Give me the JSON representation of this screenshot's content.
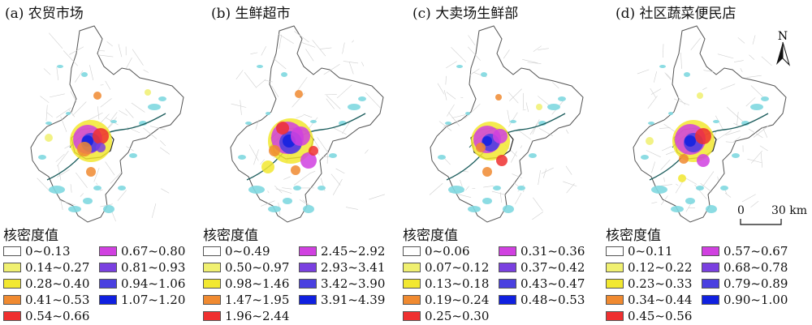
{
  "legend_title": "核密度值",
  "colors": [
    "#ffffff",
    "#f0f070",
    "#f2e830",
    "#f08a30",
    "#ef3030",
    "#d040e0",
    "#7a40e0",
    "#4a40e0",
    "#1020e0"
  ],
  "north_label": "N",
  "scale": {
    "start": "0",
    "end": "30 km"
  },
  "panels": [
    {
      "title": "(a) 农贸市场",
      "classes": [
        "0~0.13",
        "0.14~0.27",
        "0.28~0.40",
        "0.41~0.53",
        "0.54~0.66",
        "0.67~0.80",
        "0.81~0.93",
        "0.94~1.06",
        "1.07~1.20"
      ]
    },
    {
      "title": "(b) 生鲜超市",
      "classes": [
        "0~0.49",
        "0.50~0.97",
        "0.98~1.46",
        "1.47~1.95",
        "1.96~2.44",
        "2.45~2.92",
        "2.93~3.41",
        "3.42~3.90",
        "3.91~4.39"
      ]
    },
    {
      "title": "(c) 大卖场生鲜部",
      "classes": [
        "0~0.06",
        "0.07~0.12",
        "0.13~0.18",
        "0.19~0.24",
        "0.25~0.30",
        "0.31~0.36",
        "0.37~0.42",
        "0.43~0.47",
        "0.48~0.53"
      ]
    },
    {
      "title": "(d) 社区蔬菜便民店",
      "classes": [
        "0~0.11",
        "0.12~0.22",
        "0.23~0.33",
        "0.34~0.44",
        "0.45~0.56",
        "0.57~0.67",
        "0.68~0.78",
        "0.79~0.89",
        "0.90~1.00"
      ]
    }
  ]
}
